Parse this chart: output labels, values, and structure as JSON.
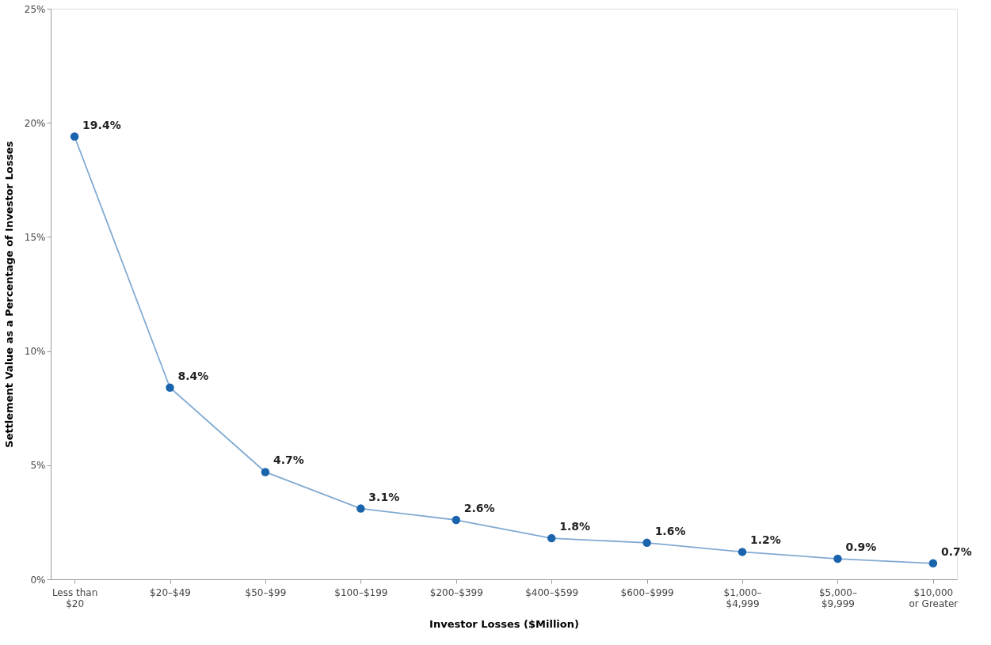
{
  "chart_data": {
    "type": "line",
    "xlabel": "Investor Losses ($Million)",
    "ylabel": "Settlement Value as a Percentage of Investor Losses",
    "categories": [
      "Less than\n$20",
      "$20–$49",
      "$50–$99",
      "$100–$199",
      "$200–$399",
      "$400–$599",
      "$600–$999",
      "$1,000–\n$4,999",
      "$5,000–\n$9,999",
      "$10,000\nor Greater"
    ],
    "series": [
      {
        "color": "#1a64ad",
        "values": [
          19.4,
          8.4,
          4.7,
          3.1,
          2.6,
          1.8,
          1.6,
          1.2,
          0.9,
          0.7
        ],
        "value_labels": [
          "19.4%",
          "8.4%",
          "4.7%",
          "3.1%",
          "2.6%",
          "1.8%",
          "1.6%",
          "1.2%",
          "0.9%",
          "0.7%"
        ]
      }
    ],
    "ylim": [
      0,
      25
    ],
    "yticks": [
      {
        "value": 0,
        "label": "0%"
      },
      {
        "value": 5,
        "label": "5%"
      },
      {
        "value": 10,
        "label": "10%"
      },
      {
        "value": 15,
        "label": "15%"
      },
      {
        "value": 20,
        "label": "20%"
      },
      {
        "value": 25,
        "label": "25%"
      }
    ],
    "grid": false,
    "marker": "circle",
    "line_style": "solid"
  }
}
